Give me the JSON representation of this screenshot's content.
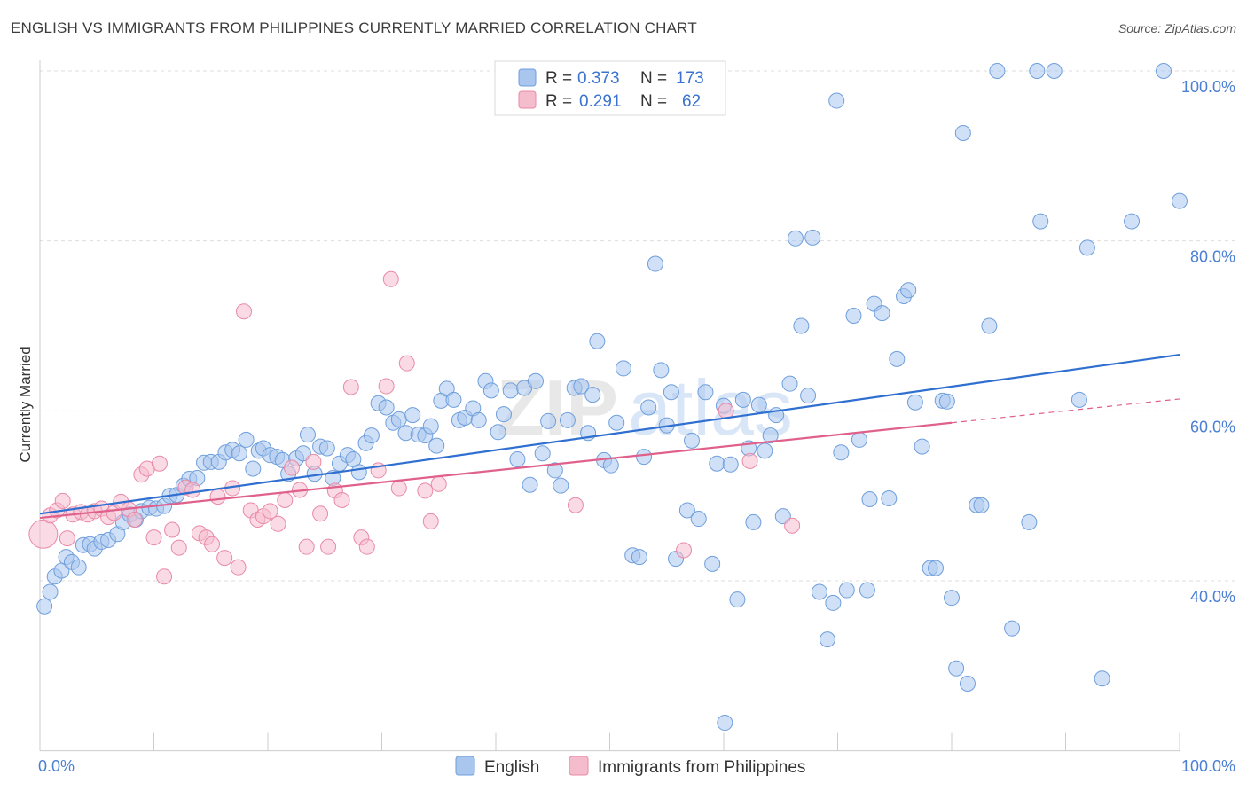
{
  "header": {
    "title": "ENGLISH VS IMMIGRANTS FROM PHILIPPINES CURRENTLY MARRIED CORRELATION CHART",
    "source": "Source: ZipAtlas.com"
  },
  "colors": {
    "english_fill": "#a9c6ee",
    "english_stroke": "#6f9fdc",
    "english_line": "#2f6fd0",
    "phil_fill": "#f5bccd",
    "phil_stroke": "#e98aa7",
    "phil_line": "#e0608c",
    "grid": "#dddddd",
    "tick_text": "#4a7fd4"
  },
  "legend": {
    "r_label": "R =",
    "n_label": "N =",
    "english_r": "0.373",
    "english_n": "173",
    "phil_r": "0.291",
    "phil_n": "62"
  },
  "bottom_legend": {
    "english": "English",
    "phil": "Immigrants from Philippines"
  },
  "chart_data": {
    "type": "scatter",
    "title": "ENGLISH VS IMMIGRANTS FROM PHILIPPINES CURRENTLY MARRIED CORRELATION CHART",
    "xlabel": "",
    "ylabel": "Currently Married",
    "xlim": [
      0,
      100
    ],
    "ylim": [
      20,
      103
    ],
    "x_tick_labels": [
      "0.0%",
      "100.0%"
    ],
    "y_ticks": [
      40,
      60,
      80,
      100
    ],
    "y_tick_labels": [
      "40.0%",
      "60.0%",
      "80.0%",
      "100.0%"
    ],
    "grid": true,
    "legend_position": "top-center",
    "watermark": "ZIPatlas",
    "series": [
      {
        "name": "English",
        "r": 0.373,
        "n": 173,
        "trend": [
          [
            0,
            47.9
          ],
          [
            100,
            66.6
          ]
        ],
        "points": [
          [
            0.4,
            37
          ],
          [
            0.9,
            38.7
          ],
          [
            1.3,
            40.5
          ],
          [
            1.9,
            41.2
          ],
          [
            2.3,
            42.8
          ],
          [
            2.8,
            42.2
          ],
          [
            3.4,
            41.6
          ],
          [
            3.8,
            44.2
          ],
          [
            4.4,
            44.3
          ],
          [
            4.8,
            43.8
          ],
          [
            5.4,
            44.6
          ],
          [
            6.0,
            44.8
          ],
          [
            6.8,
            45.5
          ],
          [
            7.3,
            46.9
          ],
          [
            7.9,
            47.8
          ],
          [
            8.4,
            47.2
          ],
          [
            8.9,
            48.2
          ],
          [
            9.6,
            48.6
          ],
          [
            10.2,
            48.5
          ],
          [
            10.9,
            48.8
          ],
          [
            11.4,
            50.0
          ],
          [
            12.0,
            50.1
          ],
          [
            12.6,
            51.2
          ],
          [
            13.1,
            52.0
          ],
          [
            13.8,
            52.1
          ],
          [
            14.4,
            53.9
          ],
          [
            15.0,
            54.0
          ],
          [
            15.7,
            54.0
          ],
          [
            16.3,
            55.1
          ],
          [
            16.9,
            55.4
          ],
          [
            17.5,
            55.0
          ],
          [
            18.1,
            56.6
          ],
          [
            18.7,
            53.2
          ],
          [
            19.2,
            55.3
          ],
          [
            19.6,
            55.6
          ],
          [
            20.2,
            54.8
          ],
          [
            20.8,
            54.6
          ],
          [
            21.3,
            54.2
          ],
          [
            21.8,
            52.6
          ],
          [
            22.5,
            54.4
          ],
          [
            23.1,
            55.0
          ],
          [
            23.5,
            57.2
          ],
          [
            24.1,
            52.6
          ],
          [
            24.6,
            55.8
          ],
          [
            25.2,
            55.6
          ],
          [
            25.7,
            52.1
          ],
          [
            26.3,
            53.8
          ],
          [
            27.0,
            54.8
          ],
          [
            27.5,
            54.3
          ],
          [
            28.0,
            52.8
          ],
          [
            28.6,
            56.2
          ],
          [
            29.1,
            57.1
          ],
          [
            29.7,
            60.9
          ],
          [
            30.4,
            60.4
          ],
          [
            31.0,
            58.6
          ],
          [
            31.5,
            59.0
          ],
          [
            32.1,
            57.4
          ],
          [
            32.7,
            59.5
          ],
          [
            33.2,
            57.2
          ],
          [
            33.8,
            57.1
          ],
          [
            34.3,
            58.2
          ],
          [
            34.8,
            55.9
          ],
          [
            35.2,
            61.2
          ],
          [
            35.7,
            62.6
          ],
          [
            36.3,
            61.3
          ],
          [
            36.8,
            58.9
          ],
          [
            37.3,
            59.2
          ],
          [
            38.0,
            60.3
          ],
          [
            38.5,
            58.9
          ],
          [
            39.1,
            63.5
          ],
          [
            39.6,
            62.4
          ],
          [
            40.2,
            57.5
          ],
          [
            40.7,
            59.6
          ],
          [
            41.3,
            62.4
          ],
          [
            41.9,
            54.3
          ],
          [
            42.5,
            62.7
          ],
          [
            43.0,
            51.3
          ],
          [
            43.5,
            63.5
          ],
          [
            44.1,
            55.0
          ],
          [
            44.6,
            58.8
          ],
          [
            45.2,
            53.0
          ],
          [
            45.7,
            51.2
          ],
          [
            46.3,
            58.9
          ],
          [
            46.9,
            62.7
          ],
          [
            47.5,
            62.9
          ],
          [
            48.1,
            57.4
          ],
          [
            48.5,
            61.9
          ],
          [
            48.9,
            68.2
          ],
          [
            49.5,
            54.2
          ],
          [
            50.1,
            53.6
          ],
          [
            50.6,
            58.6
          ],
          [
            51.2,
            65.0
          ],
          [
            52.0,
            43.0
          ],
          [
            52.6,
            42.8
          ],
          [
            53.0,
            54.6
          ],
          [
            53.4,
            60.4
          ],
          [
            54.0,
            77.3
          ],
          [
            54.5,
            64.8
          ],
          [
            55.0,
            58.3
          ],
          [
            55.4,
            62.2
          ],
          [
            55.8,
            42.6
          ],
          [
            56.8,
            48.3
          ],
          [
            57.2,
            56.5
          ],
          [
            57.8,
            47.3
          ],
          [
            58.4,
            62.2
          ],
          [
            59.0,
            42.0
          ],
          [
            59.4,
            53.8
          ],
          [
            60.0,
            60.6
          ],
          [
            60.6,
            53.7
          ],
          [
            61.2,
            37.8
          ],
          [
            61.7,
            61.3
          ],
          [
            62.2,
            55.6
          ],
          [
            62.6,
            46.9
          ],
          [
            63.1,
            60.7
          ],
          [
            63.6,
            55.3
          ],
          [
            64.1,
            57.1
          ],
          [
            64.6,
            59.5
          ],
          [
            65.2,
            47.6
          ],
          [
            65.8,
            63.2
          ],
          [
            66.3,
            80.3
          ],
          [
            66.8,
            70.0
          ],
          [
            67.4,
            61.8
          ],
          [
            67.8,
            80.4
          ],
          [
            68.4,
            38.7
          ],
          [
            69.1,
            33.1
          ],
          [
            69.6,
            37.4
          ],
          [
            69.9,
            96.5
          ],
          [
            70.3,
            55.1
          ],
          [
            70.8,
            38.9
          ],
          [
            71.4,
            71.2
          ],
          [
            71.9,
            56.6
          ],
          [
            72.6,
            38.9
          ],
          [
            72.8,
            49.6
          ],
          [
            73.2,
            72.6
          ],
          [
            73.9,
            71.5
          ],
          [
            74.5,
            49.7
          ],
          [
            75.2,
            66.1
          ],
          [
            75.8,
            73.5
          ],
          [
            76.2,
            74.2
          ],
          [
            76.8,
            61.0
          ],
          [
            77.4,
            55.8
          ],
          [
            78.1,
            41.5
          ],
          [
            78.6,
            41.5
          ],
          [
            79.2,
            61.2
          ],
          [
            79.6,
            61.1
          ],
          [
            80.0,
            38.0
          ],
          [
            80.4,
            29.7
          ],
          [
            81.0,
            92.7
          ],
          [
            81.4,
            27.9
          ],
          [
            82.2,
            48.9
          ],
          [
            82.6,
            48.9
          ],
          [
            83.3,
            70.0
          ],
          [
            84.0,
            100.0
          ],
          [
            85.3,
            34.4
          ],
          [
            86.8,
            46.9
          ],
          [
            87.5,
            100.0
          ],
          [
            87.8,
            82.3
          ],
          [
            89.0,
            100.0
          ],
          [
            91.2,
            61.3
          ],
          [
            91.9,
            79.2
          ],
          [
            93.2,
            28.5
          ],
          [
            95.8,
            82.3
          ],
          [
            98.6,
            100.0
          ],
          [
            100.0,
            84.7
          ],
          [
            60.1,
            23.3
          ]
        ]
      },
      {
        "name": "Immigrants from Philippines",
        "r": 0.291,
        "n": 62,
        "trend": [
          [
            0,
            47.4
          ],
          [
            80,
            58.6
          ]
        ],
        "trend_dashed": [
          [
            80,
            58.6
          ],
          [
            100,
            61.4
          ]
        ],
        "points": [
          [
            0.3,
            45.5
          ],
          [
            0.9,
            47.7
          ],
          [
            1.5,
            48.3
          ],
          [
            2.0,
            49.4
          ],
          [
            2.4,
            45.0
          ],
          [
            2.9,
            47.8
          ],
          [
            3.6,
            48.1
          ],
          [
            4.2,
            47.8
          ],
          [
            4.8,
            48.2
          ],
          [
            5.4,
            48.5
          ],
          [
            6.0,
            47.5
          ],
          [
            6.5,
            48.0
          ],
          [
            7.1,
            49.3
          ],
          [
            7.8,
            48.4
          ],
          [
            8.3,
            47.2
          ],
          [
            8.9,
            52.5
          ],
          [
            9.4,
            53.2
          ],
          [
            10.0,
            45.1
          ],
          [
            10.5,
            53.8
          ],
          [
            10.9,
            40.5
          ],
          [
            11.6,
            46.0
          ],
          [
            12.2,
            43.9
          ],
          [
            12.8,
            51.0
          ],
          [
            13.4,
            50.7
          ],
          [
            14.0,
            45.6
          ],
          [
            14.6,
            45.1
          ],
          [
            15.1,
            44.3
          ],
          [
            15.6,
            49.9
          ],
          [
            16.2,
            42.7
          ],
          [
            16.9,
            50.9
          ],
          [
            17.4,
            41.6
          ],
          [
            17.9,
            71.7
          ],
          [
            18.5,
            48.3
          ],
          [
            19.1,
            47.2
          ],
          [
            19.6,
            47.6
          ],
          [
            20.2,
            48.2
          ],
          [
            20.9,
            46.7
          ],
          [
            21.5,
            49.5
          ],
          [
            22.1,
            53.3
          ],
          [
            22.8,
            50.7
          ],
          [
            23.4,
            44.0
          ],
          [
            24.0,
            54.0
          ],
          [
            24.6,
            47.9
          ],
          [
            25.3,
            44.0
          ],
          [
            25.9,
            50.6
          ],
          [
            26.5,
            49.5
          ],
          [
            27.3,
            62.8
          ],
          [
            28.2,
            45.1
          ],
          [
            28.7,
            44.0
          ],
          [
            29.7,
            53.0
          ],
          [
            30.4,
            62.9
          ],
          [
            30.8,
            75.5
          ],
          [
            31.5,
            50.9
          ],
          [
            32.2,
            65.6
          ],
          [
            33.8,
            50.6
          ],
          [
            34.3,
            47.0
          ],
          [
            35.0,
            51.4
          ],
          [
            47.0,
            48.9
          ],
          [
            56.5,
            43.6
          ],
          [
            60.2,
            60.0
          ],
          [
            62.3,
            54.1
          ],
          [
            66.0,
            46.5
          ]
        ]
      }
    ]
  }
}
